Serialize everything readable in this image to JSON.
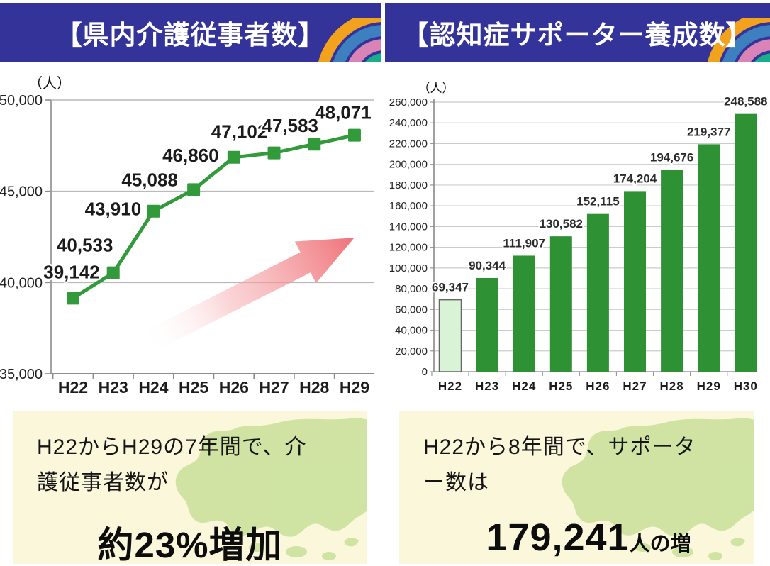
{
  "headers": {
    "bg_color": "#33339A",
    "text_color": "#ffffff",
    "left_title": "【県内介護従事者数】",
    "right_title": "【認知症サポーター養成数】",
    "ribbon_colors": [
      "#F2A21C",
      "#3E7FC0",
      "#D983B6",
      "#18AE8B"
    ]
  },
  "chart_data": [
    {
      "id": "care-workers",
      "type": "line",
      "title": "県内介護従事者数",
      "unit_label": "（人）",
      "categories": [
        "H22",
        "H23",
        "H24",
        "H25",
        "H26",
        "H27",
        "H28",
        "H29"
      ],
      "values": [
        39142,
        40533,
        43910,
        45088,
        46860,
        47102,
        47583,
        48071
      ],
      "value_labels": [
        "39,142",
        "40,533",
        "43,910",
        "45,088",
        "46,860",
        "47,102",
        "47,583",
        "48,071"
      ],
      "ylim": [
        35000,
        50000
      ],
      "ytick_labels": [
        "50,000",
        "45,000",
        "40,000",
        "35,000"
      ],
      "grid": true,
      "legend": "none",
      "line_color": "#339A3C",
      "marker": "square",
      "annotation": {
        "type": "upward-trend-arrow",
        "color": "#EE6E74"
      }
    },
    {
      "id": "dementia-supporters",
      "type": "bar",
      "title": "認知症サポーター養成数",
      "unit_label": "（人）",
      "categories": [
        "H22",
        "H23",
        "H24",
        "H25",
        "H26",
        "H27",
        "H28",
        "H29",
        "H30"
      ],
      "values": [
        69347,
        90344,
        111907,
        130582,
        152115,
        174204,
        194676,
        219377,
        248588
      ],
      "value_labels": [
        "69,347",
        "90,344",
        "111,907",
        "130,582",
        "152,115",
        "174,204",
        "194,676",
        "219,377",
        "248,588"
      ],
      "ylim": [
        0,
        260000
      ],
      "ytick_labels": [
        "260,000",
        "240,000",
        "220,000",
        "200,000",
        "180,000",
        "160,000",
        "140,000",
        "120,000",
        "100,000",
        "80,000",
        "60,000",
        "40,000",
        "20,000",
        "0"
      ],
      "grid": true,
      "legend": "none",
      "bar_color": "#2E9134",
      "first_bar_color": "#D8F3D5",
      "first_bar_border": "#666666"
    }
  ],
  "summaries": {
    "left": {
      "text": "H22からH29の7年間で、介護従事者数が",
      "highlight": "約23%増加",
      "bg_color": "#FAF7DB",
      "map_color": "#CDE2A0"
    },
    "right": {
      "text": "H22から8年間で、サポーター数は",
      "highlight_number": "179,241",
      "highlight_suffix": "人の増",
      "bg_color": "#FAF7DB",
      "map_color": "#CDE2A0"
    }
  }
}
